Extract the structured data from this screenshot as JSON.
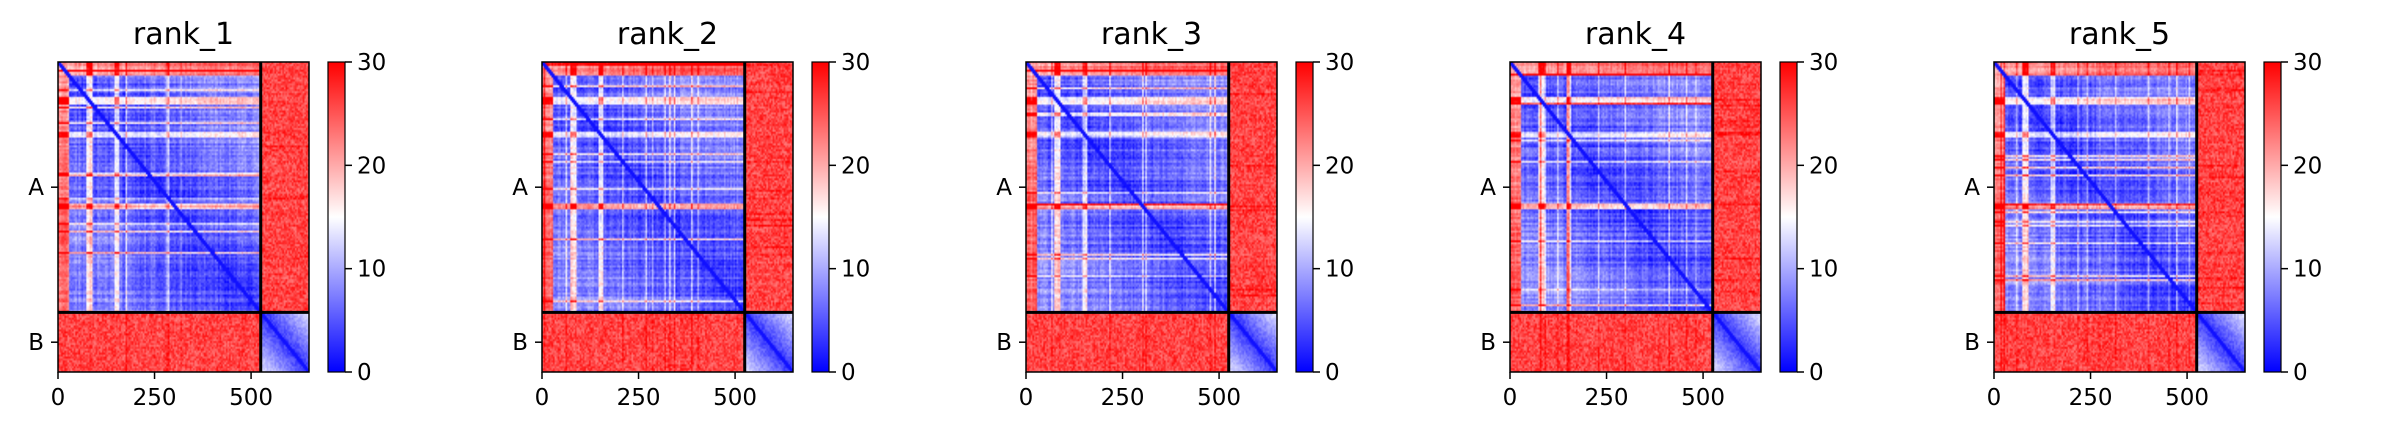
{
  "chart_data": [
    {
      "type": "heatmap",
      "title": "rank_1",
      "xlabel": "",
      "ylabel": "",
      "x_ticks": [
        "0",
        "250",
        "500"
      ],
      "x_tick_values": [
        0,
        250,
        500
      ],
      "y_tick_labels": [
        "A",
        "B"
      ],
      "chains": [
        {
          "name": "A",
          "start": 0,
          "end": 525
        },
        {
          "name": "B",
          "start": 525,
          "end": 650
        }
      ],
      "xlim": [
        0,
        650
      ],
      "colorbar": {
        "ticks": [
          "0",
          "10",
          "20",
          "30"
        ],
        "tick_values": [
          0,
          10,
          20,
          30
        ],
        "range": [
          0,
          30
        ],
        "colormap": "bwr"
      },
      "grid": false
    },
    {
      "type": "heatmap",
      "title": "rank_2",
      "xlabel": "",
      "ylabel": "",
      "x_ticks": [
        "0",
        "250",
        "500"
      ],
      "x_tick_values": [
        0,
        250,
        500
      ],
      "y_tick_labels": [
        "A",
        "B"
      ],
      "chains": [
        {
          "name": "A",
          "start": 0,
          "end": 525
        },
        {
          "name": "B",
          "start": 525,
          "end": 650
        }
      ],
      "xlim": [
        0,
        650
      ],
      "colorbar": {
        "ticks": [
          "0",
          "10",
          "20",
          "30"
        ],
        "tick_values": [
          0,
          10,
          20,
          30
        ],
        "range": [
          0,
          30
        ],
        "colormap": "bwr"
      },
      "grid": false
    },
    {
      "type": "heatmap",
      "title": "rank_3",
      "xlabel": "",
      "ylabel": "",
      "x_ticks": [
        "0",
        "250",
        "500"
      ],
      "x_tick_values": [
        0,
        250,
        500
      ],
      "y_tick_labels": [
        "A",
        "B"
      ],
      "chains": [
        {
          "name": "A",
          "start": 0,
          "end": 525
        },
        {
          "name": "B",
          "start": 525,
          "end": 650
        }
      ],
      "xlim": [
        0,
        650
      ],
      "colorbar": {
        "ticks": [
          "0",
          "10",
          "20",
          "30"
        ],
        "tick_values": [
          0,
          10,
          20,
          30
        ],
        "range": [
          0,
          30
        ],
        "colormap": "bwr"
      },
      "grid": false
    },
    {
      "type": "heatmap",
      "title": "rank_4",
      "xlabel": "",
      "ylabel": "",
      "x_ticks": [
        "0",
        "250",
        "500"
      ],
      "x_tick_values": [
        0,
        250,
        500
      ],
      "y_tick_labels": [
        "A",
        "B"
      ],
      "chains": [
        {
          "name": "A",
          "start": 0,
          "end": 525
        },
        {
          "name": "B",
          "start": 525,
          "end": 650
        }
      ],
      "xlim": [
        0,
        650
      ],
      "colorbar": {
        "ticks": [
          "0",
          "10",
          "20",
          "30"
        ],
        "tick_values": [
          0,
          10,
          20,
          30
        ],
        "range": [
          0,
          30
        ],
        "colormap": "bwr"
      },
      "grid": false
    },
    {
      "type": "heatmap",
      "title": "rank_5",
      "xlabel": "",
      "ylabel": "",
      "x_ticks": [
        "0",
        "250",
        "500"
      ],
      "x_tick_values": [
        0,
        250,
        500
      ],
      "y_tick_labels": [
        "A",
        "B"
      ],
      "chains": [
        {
          "name": "A",
          "start": 0,
          "end": 525
        },
        {
          "name": "B",
          "start": 525,
          "end": 650
        }
      ],
      "xlim": [
        0,
        650
      ],
      "colorbar": {
        "ticks": [
          "0",
          "10",
          "20",
          "30"
        ],
        "tick_values": [
          0,
          10,
          20,
          30
        ],
        "range": [
          0,
          30
        ],
        "colormap": "bwr"
      },
      "grid": false
    }
  ]
}
